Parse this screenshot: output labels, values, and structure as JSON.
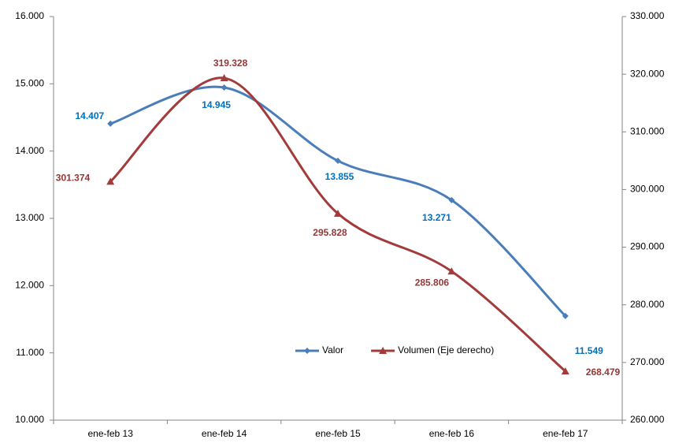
{
  "chart_data": {
    "type": "line",
    "categories": [
      "ene-feb 13",
      "ene-feb 14",
      "ene-feb 15",
      "ene-feb 16",
      "ene-feb 17"
    ],
    "series": [
      {
        "name": "Valor",
        "color": "#4a7ebb",
        "label_color": "#0070c0",
        "marker": "diamond",
        "values": [
          14407,
          14945,
          13855,
          13271,
          11549
        ],
        "value_labels": [
          "14.407",
          "14.945",
          "13.855",
          "13.271",
          "11.549"
        ]
      },
      {
        "name": "Volumen (Eje derecho)",
        "color": "#a33b3b",
        "label_color": "#953735",
        "marker": "triangle",
        "axis": "y2",
        "values": [
          301374,
          319328,
          295828,
          285806,
          268479
        ],
        "value_labels": [
          "301.374",
          "319.328",
          "295.828",
          "285.806",
          "268.479"
        ]
      }
    ],
    "ylim": [
      10000,
      16000
    ],
    "yticks": [
      {
        "value": 10000,
        "label": "10.000"
      },
      {
        "value": 11000,
        "label": "11.000"
      },
      {
        "value": 12000,
        "label": "12.000"
      },
      {
        "value": 13000,
        "label": "13.000"
      },
      {
        "value": 14000,
        "label": "14.000"
      },
      {
        "value": 15000,
        "label": "15.000"
      },
      {
        "value": 16000,
        "label": "16.000"
      }
    ],
    "y2lim": [
      260000,
      330000
    ],
    "y2ticks": [
      {
        "value": 260000,
        "label": "260.000"
      },
      {
        "value": 270000,
        "label": "270.000"
      },
      {
        "value": 280000,
        "label": "280.000"
      },
      {
        "value": 290000,
        "label": "290.000"
      },
      {
        "value": 300000,
        "label": "300.000"
      },
      {
        "value": 310000,
        "label": "310.000"
      },
      {
        "value": 320000,
        "label": "320.000"
      },
      {
        "value": 330000,
        "label": "330.000"
      }
    ],
    "legend": "lower center",
    "smooth": true
  }
}
